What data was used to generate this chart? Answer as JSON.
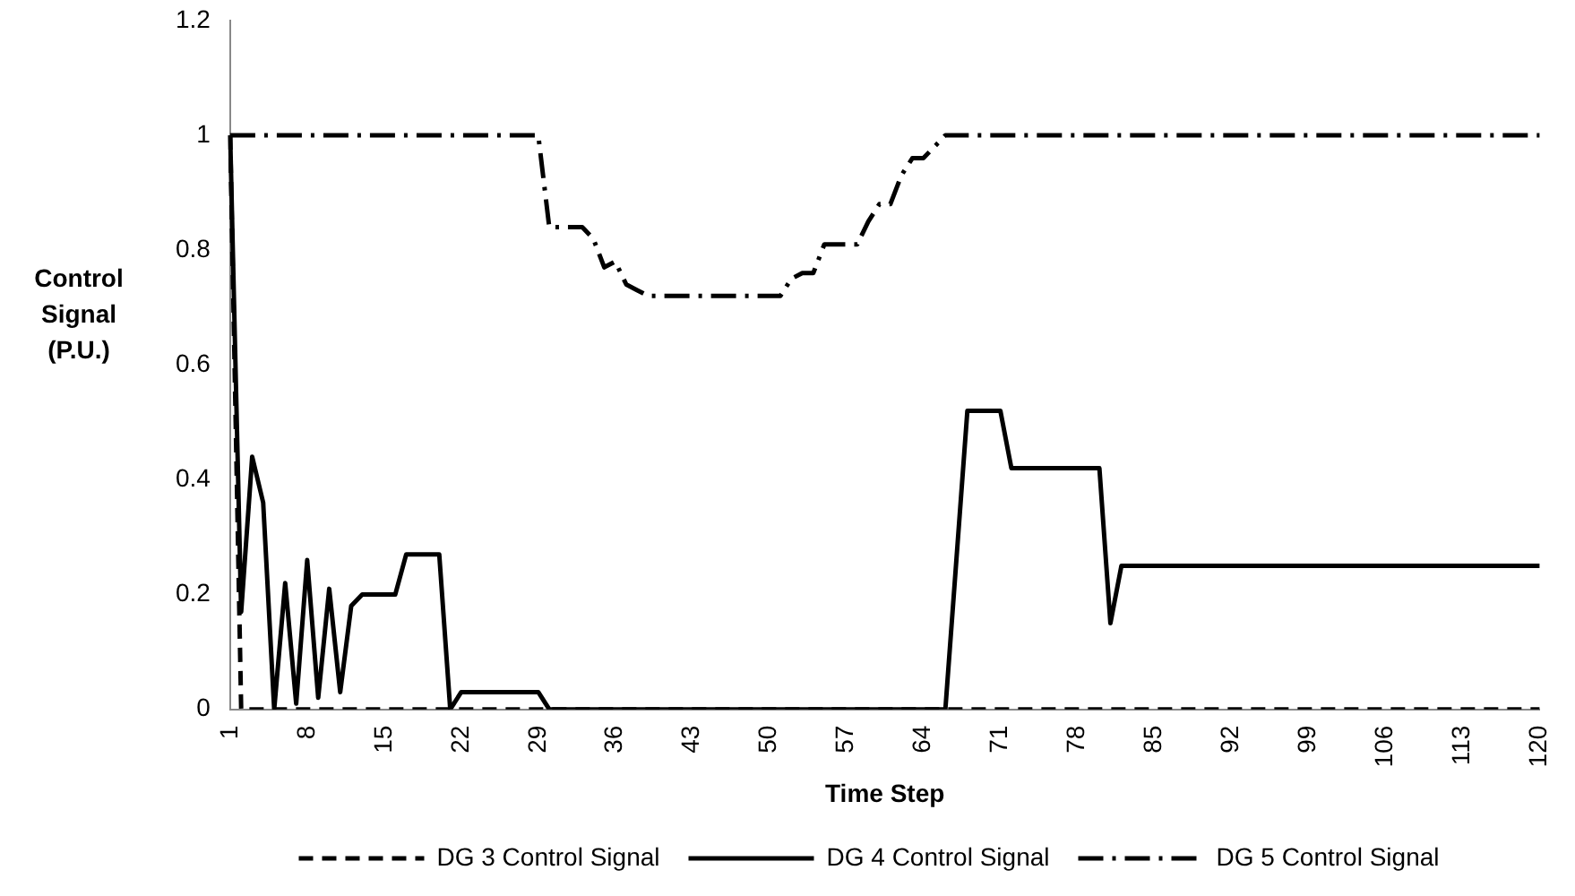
{
  "chart_data": {
    "type": "line",
    "xlabel": "Time Step",
    "ylabel": "Control Signal (P.U.)",
    "categories": [
      "1",
      null,
      null,
      null,
      null,
      null,
      null,
      "8",
      null,
      null,
      null,
      null,
      null,
      null,
      "15",
      null,
      null,
      null,
      null,
      null,
      null,
      "22",
      null,
      null,
      null,
      null,
      null,
      null,
      "29",
      null,
      null,
      null,
      null,
      null,
      null,
      "36",
      null,
      null,
      null,
      null,
      null,
      null,
      "43",
      null,
      null,
      null,
      null,
      null,
      null,
      "50",
      null,
      null,
      null,
      null,
      null,
      null,
      "57",
      null,
      null,
      null,
      null,
      null,
      null,
      "64",
      null,
      null,
      null,
      null,
      null,
      null,
      "71",
      null,
      null,
      null,
      null,
      null,
      null,
      "78",
      null,
      null,
      null,
      null,
      null,
      null,
      "85",
      null,
      null,
      null,
      null,
      null,
      null,
      "92",
      null,
      null,
      null,
      null,
      null,
      null,
      "99",
      null,
      null,
      null,
      null,
      null,
      null,
      "106",
      null,
      null,
      null,
      null,
      null,
      null,
      "113",
      null,
      null,
      null,
      null,
      null,
      null,
      "120"
    ],
    "series": [
      {
        "name": "DG 3 Control Signal",
        "color": "#000000",
        "line_style": "dashed",
        "values": [
          1,
          0,
          0,
          0,
          0,
          0,
          0,
          0,
          0,
          0,
          0,
          0,
          0,
          0,
          0,
          0,
          0,
          0,
          0,
          0,
          0,
          0,
          0,
          0,
          0,
          0,
          0,
          0,
          0,
          0,
          0,
          0,
          0,
          0,
          0,
          0,
          0,
          0,
          0,
          0,
          0,
          0,
          0,
          0,
          0,
          0,
          0,
          0,
          0,
          0,
          0,
          0,
          0,
          0,
          0,
          0,
          0,
          0,
          0,
          0,
          0,
          0,
          0,
          0,
          0,
          0,
          0,
          0,
          0,
          0,
          0,
          0,
          0,
          0,
          0,
          0,
          0,
          0,
          0,
          0,
          0,
          0,
          0,
          0,
          0,
          0,
          0,
          0,
          0,
          0,
          0,
          0,
          0,
          0,
          0,
          0,
          0,
          0,
          0,
          0,
          0,
          0,
          0,
          0,
          0,
          0,
          0,
          0,
          0,
          0,
          0,
          0,
          0,
          0,
          0,
          0,
          0,
          0,
          0,
          0
        ]
      },
      {
        "name": "DG 4 Control Signal",
        "color": "#000000",
        "line_style": "solid",
        "values": [
          1,
          0.17,
          0.44,
          0.36,
          0,
          0.22,
          0.01,
          0.26,
          0.02,
          0.21,
          0.03,
          0.18,
          0.2,
          0.2,
          0.2,
          0.2,
          0.27,
          0.27,
          0.27,
          0.27,
          0,
          0.03,
          0.03,
          0.03,
          0.03,
          0.03,
          0.03,
          0.03,
          0.03,
          0,
          0,
          0,
          0,
          0,
          0,
          0,
          0,
          0,
          0,
          0,
          0,
          0,
          0,
          0,
          0,
          0,
          0,
          0,
          0,
          0,
          0,
          0,
          0,
          0,
          0,
          0,
          0,
          0,
          0,
          0,
          0,
          0,
          0,
          0,
          0,
          0,
          0.26,
          0.52,
          0.52,
          0.52,
          0.52,
          0.42,
          0.42,
          0.42,
          0.42,
          0.42,
          0.42,
          0.42,
          0.42,
          0.42,
          0.15,
          0.25,
          0.25,
          0.25,
          0.25,
          0.25,
          0.25,
          0.25,
          0.25,
          0.25,
          0.25,
          0.25,
          0.25,
          0.25,
          0.25,
          0.25,
          0.25,
          0.25,
          0.25,
          0.25,
          0.25,
          0.25,
          0.25,
          0.25,
          0.25,
          0.25,
          0.25,
          0.25,
          0.25,
          0.25,
          0.25,
          0.25,
          0.25,
          0.25,
          0.25,
          0.25,
          0.25,
          0.25,
          0.25,
          0.25
        ]
      },
      {
        "name": "DG 5 Control Signal",
        "color": "#000000",
        "line_style": "dashdot",
        "values": [
          1,
          1,
          1,
          1,
          1,
          1,
          1,
          1,
          1,
          1,
          1,
          1,
          1,
          1,
          1,
          1,
          1,
          1,
          1,
          1,
          1,
          1,
          1,
          1,
          1,
          1,
          1,
          1,
          1,
          0.84,
          0.84,
          0.84,
          0.84,
          0.82,
          0.77,
          0.78,
          0.74,
          0.73,
          0.72,
          0.72,
          0.72,
          0.72,
          0.72,
          0.72,
          0.72,
          0.72,
          0.72,
          0.72,
          0.72,
          0.72,
          0.72,
          0.75,
          0.76,
          0.76,
          0.81,
          0.81,
          0.81,
          0.81,
          0.85,
          0.88,
          0.88,
          0.93,
          0.96,
          0.96,
          0.98,
          1,
          1,
          1,
          1,
          1,
          1,
          1,
          1,
          1,
          1,
          1,
          1,
          1,
          1,
          1,
          1,
          1,
          1,
          1,
          1,
          1,
          1,
          1,
          1,
          1,
          1,
          1,
          1,
          1,
          1,
          1,
          1,
          1,
          1,
          1,
          1,
          1,
          1,
          1,
          1,
          1,
          1,
          1,
          1,
          1,
          1,
          1,
          1,
          1,
          1,
          1,
          1,
          1,
          1,
          1
        ]
      }
    ],
    "ylim": [
      0,
      1.2
    ],
    "yticks": [
      0,
      {
        "value": 0.2,
        "label": "0.2"
      },
      {
        "value": 0.4,
        "label": "0.4"
      },
      {
        "value": 0.6,
        "label": "0.6"
      },
      {
        "value": 0.8,
        "label": "0.8"
      },
      1,
      {
        "value": 1.2,
        "label": "1.2"
      }
    ],
    "grid": false,
    "legend": "bottom",
    "marker": "none"
  }
}
